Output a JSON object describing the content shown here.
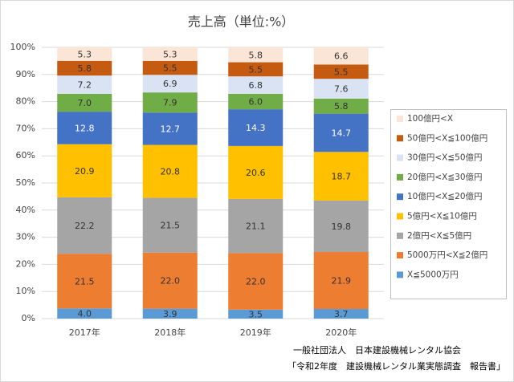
{
  "chart_data": {
    "type": "bar",
    "stacking": "percent",
    "title": "売上高（単位:%）",
    "categories": [
      "2017年",
      "2018年",
      "2019年",
      "2020年"
    ],
    "series": [
      {
        "name": "X≦5000万円",
        "color": "#5b9bd5",
        "label_color": "#333333",
        "values": [
          4.0,
          3.9,
          3.5,
          3.7
        ],
        "value_labels": [
          "4.0",
          "3.9",
          "3.5",
          "3.7"
        ]
      },
      {
        "name": "5000万円<X≦2億円",
        "color": "#ed7d31",
        "label_color": "#333333",
        "values": [
          21.5,
          22.0,
          22.0,
          21.9
        ],
        "value_labels": [
          "21.5",
          "22.0",
          "22.0",
          "21.9"
        ]
      },
      {
        "name": "2億円<X≦5億円",
        "color": "#a5a5a5",
        "label_color": "#333333",
        "values": [
          22.2,
          21.5,
          21.1,
          19.8
        ],
        "value_labels": [
          "22.2",
          "21.5",
          "21.1",
          "19.8"
        ]
      },
      {
        "name": "5億円<X≦10億円",
        "color": "#ffc000",
        "label_color": "#333333",
        "values": [
          20.9,
          20.8,
          20.6,
          18.7
        ],
        "value_labels": [
          "20.9",
          "20.8",
          "20.6",
          "18.7"
        ]
      },
      {
        "name": "10億円<X≦20億円",
        "color": "#4472c4",
        "label_color": "#ffffff",
        "values": [
          12.8,
          12.7,
          14.3,
          14.7
        ],
        "value_labels": [
          "12.8",
          "12.7",
          "14.3",
          "14.7"
        ]
      },
      {
        "name": "20億円<X≦30億円",
        "color": "#70ad47",
        "label_color": "#333333",
        "values": [
          7.0,
          7.9,
          6.0,
          5.8
        ],
        "value_labels": [
          "7.0",
          "7.9",
          "6.0",
          "5.8"
        ]
      },
      {
        "name": "30億円<X≦50億円",
        "color": "#dae3f3",
        "label_color": "#333333",
        "values": [
          7.2,
          6.9,
          6.8,
          7.6
        ],
        "value_labels": [
          "7.2",
          "6.9",
          "6.8",
          "7.6"
        ]
      },
      {
        "name": "50億円<X≦100億円",
        "color": "#c55a11",
        "label_color": "#333333",
        "values": [
          5.8,
          5.5,
          5.5,
          5.5
        ],
        "value_labels": [
          "5.8",
          "5.5",
          "5.5",
          "5.5"
        ]
      },
      {
        "name": "100億円<X",
        "color": "#fbe5d6",
        "label_color": "#333333",
        "values": [
          5.3,
          5.3,
          5.8,
          6.6
        ],
        "value_labels": [
          "5.3",
          "5.3",
          "5.8",
          "6.6"
        ]
      }
    ],
    "ylim": [
      0,
      100
    ],
    "yticks": [
      {
        "value": 0,
        "label": "0%"
      },
      {
        "value": 10,
        "label": "10%"
      },
      {
        "value": 20,
        "label": "20%"
      },
      {
        "value": 30,
        "label": "30%"
      },
      {
        "value": 40,
        "label": "40%"
      },
      {
        "value": 50,
        "label": "50%"
      },
      {
        "value": 60,
        "label": "60%"
      },
      {
        "value": 70,
        "label": "70%"
      },
      {
        "value": 80,
        "label": "80%"
      },
      {
        "value": 90,
        "label": "90%"
      },
      {
        "value": 100,
        "label": "100%"
      }
    ],
    "grid": true,
    "legend": "right",
    "annotations": [
      "一般社団法人　日本建設機械レンタル協会",
      "「令和2年度　建設機械レンタル業実態調査　報告書」"
    ]
  }
}
